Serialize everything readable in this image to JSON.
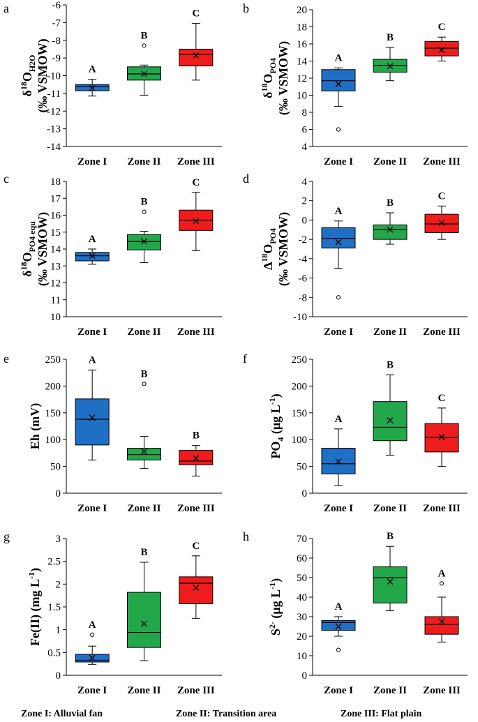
{
  "footer": {
    "zone1": "Zone I: Alluvial fan",
    "zone2": "Zone II: Transition area",
    "zone3": "Zone III: Flat plain"
  },
  "colors": {
    "zone1": "#1f6fc5",
    "zone2": "#22a84a",
    "zone3": "#ee1c1c"
  },
  "chart_data": [
    {
      "type": "box",
      "panel": "a",
      "ylabel": "δ18OH2O (‰ VSMOW)",
      "ylabel_lines": [
        {
          "parts": [
            {
              "t": "δ"
            },
            {
              "t": "18",
              "s": "sup"
            },
            {
              "t": "O"
            },
            {
              "t": "H2O",
              "s": "sub"
            }
          ]
        },
        {
          "parts": [
            {
              "t": "(‰ VSMOW)"
            }
          ]
        }
      ],
      "ylim": [
        -14,
        -6
      ],
      "ticks": [
        -14,
        -13,
        -12,
        -11,
        -10,
        -9,
        -8,
        -7,
        -6
      ],
      "categories": [
        "Zone I",
        "Zone II",
        "Zone III"
      ],
      "boxes": [
        {
          "min": -11.15,
          "q1": -10.85,
          "median": -10.6,
          "q3": -10.5,
          "max": -10.2,
          "mean": -10.7,
          "outliers": [],
          "label": "A"
        },
        {
          "min": -11.1,
          "q1": -10.25,
          "median": -9.9,
          "q3": -9.5,
          "max": -9.4,
          "mean": -9.9,
          "outliers": [
            -8.3
          ],
          "label": "B"
        },
        {
          "min": -10.25,
          "q1": -9.45,
          "median": -8.8,
          "q3": -8.5,
          "max": -7.05,
          "mean": -8.85,
          "outliers": [],
          "label": "C"
        }
      ]
    },
    {
      "type": "box",
      "panel": "b",
      "ylabel": "δ18OPO4 (‰ VSMOW)",
      "ylabel_lines": [
        {
          "parts": [
            {
              "t": "δ"
            },
            {
              "t": "18",
              "s": "sup"
            },
            {
              "t": "O"
            },
            {
              "t": "PO4",
              "s": "sub"
            }
          ]
        },
        {
          "parts": [
            {
              "t": "(‰ VSMOW)"
            }
          ]
        }
      ],
      "ylim": [
        4,
        20
      ],
      "ticks": [
        4,
        6,
        8,
        10,
        12,
        14,
        16,
        18,
        20
      ],
      "categories": [
        "Zone I",
        "Zone II",
        "Zone III"
      ],
      "boxes": [
        {
          "min": 8.7,
          "q1": 10.5,
          "median": 11.7,
          "q3": 13.0,
          "max": 13.2,
          "mean": 11.3,
          "outliers": [
            6.0
          ],
          "label": "A"
        },
        {
          "min": 11.7,
          "q1": 12.7,
          "median": 13.5,
          "q3": 14.2,
          "max": 15.6,
          "mean": 13.4,
          "outliers": [],
          "label": "B"
        },
        {
          "min": 14.0,
          "q1": 14.6,
          "median": 15.5,
          "q3": 16.3,
          "max": 16.8,
          "mean": 15.3,
          "outliers": [],
          "label": "C"
        }
      ]
    },
    {
      "type": "box",
      "panel": "c",
      "ylabel": "δ18OPO4 equ (‰ VSMOW)",
      "ylabel_lines": [
        {
          "parts": [
            {
              "t": "δ"
            },
            {
              "t": "18",
              "s": "sup"
            },
            {
              "t": "O"
            },
            {
              "t": "PO4 equ",
              "s": "sub"
            }
          ]
        },
        {
          "parts": [
            {
              "t": "(‰ VSMOW)"
            }
          ]
        }
      ],
      "ylim": [
        10,
        18
      ],
      "ticks": [
        10,
        11,
        12,
        13,
        14,
        15,
        16,
        17,
        18
      ],
      "categories": [
        "Zone I",
        "Zone II",
        "Zone III"
      ],
      "boxes": [
        {
          "min": 13.1,
          "q1": 13.3,
          "median": 13.6,
          "q3": 13.8,
          "max": 14.0,
          "mean": 13.6,
          "outliers": [],
          "label": "A"
        },
        {
          "min": 13.2,
          "q1": 13.95,
          "median": 14.45,
          "q3": 14.85,
          "max": 15.05,
          "mean": 14.45,
          "outliers": [
            16.2
          ],
          "label": "B"
        },
        {
          "min": 13.9,
          "q1": 15.1,
          "median": 15.7,
          "q3": 16.3,
          "max": 17.35,
          "mean": 15.65,
          "outliers": [],
          "label": "C"
        }
      ]
    },
    {
      "type": "box",
      "panel": "d",
      "ylabel": "Δ18OPO4 (‰ VSMOW)",
      "ylabel_lines": [
        {
          "parts": [
            {
              "t": "Δ"
            },
            {
              "t": "18",
              "s": "sup"
            },
            {
              "t": "O"
            },
            {
              "t": "PO4",
              "s": "sub"
            }
          ]
        },
        {
          "parts": [
            {
              "t": "(‰ VSMOW)"
            }
          ]
        }
      ],
      "ylim": [
        -10,
        4
      ],
      "ticks": [
        -10,
        -8,
        -6,
        -4,
        -2,
        0,
        2,
        4
      ],
      "categories": [
        "Zone I",
        "Zone II",
        "Zone III"
      ],
      "boxes": [
        {
          "min": -5.0,
          "q1": -2.9,
          "median": -1.9,
          "q3": -0.8,
          "max": -0.1,
          "mean": -2.3,
          "outliers": [
            -8.0
          ],
          "label": "A"
        },
        {
          "min": -2.5,
          "q1": -2.0,
          "median": -1.0,
          "q3": -0.5,
          "max": 0.75,
          "mean": -1.0,
          "outliers": [],
          "label": "B"
        },
        {
          "min": -2.0,
          "q1": -1.3,
          "median": -0.4,
          "q3": 0.6,
          "max": 1.45,
          "mean": -0.3,
          "outliers": [],
          "label": "C"
        }
      ]
    },
    {
      "type": "box",
      "panel": "e",
      "ylabel": "Eh (mV)",
      "ylabel_lines": [
        {
          "parts": [
            {
              "t": "Eh (mV)"
            }
          ]
        }
      ],
      "ylim": [
        0,
        250
      ],
      "ticks": [
        0,
        50,
        100,
        150,
        200,
        250
      ],
      "categories": [
        "Zone I",
        "Zone II",
        "Zone III"
      ],
      "boxes": [
        {
          "min": 62,
          "q1": 90,
          "median": 138,
          "q3": 176,
          "max": 230,
          "mean": 141,
          "outliers": [],
          "label": "A"
        },
        {
          "min": 46,
          "q1": 62,
          "median": 72,
          "q3": 84,
          "max": 106,
          "mean": 78,
          "outliers": [
            204
          ],
          "label": "B"
        },
        {
          "min": 32,
          "q1": 53,
          "median": 60,
          "q3": 80,
          "max": 89,
          "mean": 65,
          "outliers": [],
          "label": "B"
        }
      ]
    },
    {
      "type": "box",
      "panel": "f",
      "ylabel": "PO4 (μg L-1)",
      "ylabel_lines": [
        {
          "parts": [
            {
              "t": "PO"
            },
            {
              "t": "4",
              "s": "sub"
            },
            {
              "t": " (μg L"
            },
            {
              "t": "-1",
              "s": "sup"
            },
            {
              "t": ")"
            }
          ]
        }
      ],
      "ylim": [
        0,
        250
      ],
      "ticks": [
        0,
        50,
        100,
        150,
        200,
        250
      ],
      "categories": [
        "Zone I",
        "Zone II",
        "Zone III"
      ],
      "boxes": [
        {
          "min": 14,
          "q1": 36,
          "median": 55,
          "q3": 84,
          "max": 120,
          "mean": 59,
          "outliers": [],
          "label": "A"
        },
        {
          "min": 71,
          "q1": 98,
          "median": 123,
          "q3": 171,
          "max": 221,
          "mean": 136,
          "outliers": [],
          "label": "B"
        },
        {
          "min": 50,
          "q1": 77,
          "median": 104,
          "q3": 130,
          "max": 159,
          "mean": 105,
          "outliers": [],
          "label": "C"
        }
      ]
    },
    {
      "type": "box",
      "panel": "g",
      "ylabel": "Fe(II) (mg L-1)",
      "ylabel_lines": [
        {
          "parts": [
            {
              "t": "Fe(II) (mg L"
            },
            {
              "t": "-1",
              "s": "sup"
            },
            {
              "t": ")"
            }
          ]
        }
      ],
      "ylim": [
        0,
        3
      ],
      "ticks": [
        0,
        0.5,
        1,
        1.5,
        2,
        2.5,
        3
      ],
      "categories": [
        "Zone I",
        "Zone II",
        "Zone III"
      ],
      "boxes": [
        {
          "min": 0.24,
          "q1": 0.29,
          "median": 0.33,
          "q3": 0.46,
          "max": 0.64,
          "mean": 0.38,
          "outliers": [
            0.89
          ],
          "label": "A"
        },
        {
          "min": 0.32,
          "q1": 0.61,
          "median": 0.94,
          "q3": 1.82,
          "max": 2.48,
          "mean": 1.13,
          "outliers": [],
          "label": "B"
        },
        {
          "min": 1.25,
          "q1": 1.57,
          "median": 2.02,
          "q3": 2.16,
          "max": 2.62,
          "mean": 1.92,
          "outliers": [],
          "label": "C"
        }
      ]
    },
    {
      "type": "box",
      "panel": "h",
      "ylabel": "S2- (μg L-1)",
      "ylabel_lines": [
        {
          "parts": [
            {
              "t": "S"
            },
            {
              "t": "2-",
              "s": "sup"
            },
            {
              "t": " (μg L"
            },
            {
              "t": "-1",
              "s": "sup"
            },
            {
              "t": ")"
            }
          ]
        }
      ],
      "ylim": [
        0,
        70
      ],
      "ticks": [
        0,
        10,
        20,
        30,
        40,
        50,
        60,
        70
      ],
      "categories": [
        "Zone I",
        "Zone II",
        "Zone III"
      ],
      "boxes": [
        {
          "min": 20,
          "q1": 23,
          "median": 27,
          "q3": 28,
          "max": 30,
          "mean": 25,
          "outliers": [
            13
          ],
          "label": "A"
        },
        {
          "min": 33,
          "q1": 37,
          "median": 50,
          "q3": 55.5,
          "max": 66,
          "mean": 48,
          "outliers": [],
          "label": "B"
        },
        {
          "min": 17,
          "q1": 21,
          "median": 26,
          "q3": 30,
          "max": 40,
          "mean": 27.5,
          "outliers": [
            47
          ],
          "label": "A"
        }
      ]
    }
  ]
}
